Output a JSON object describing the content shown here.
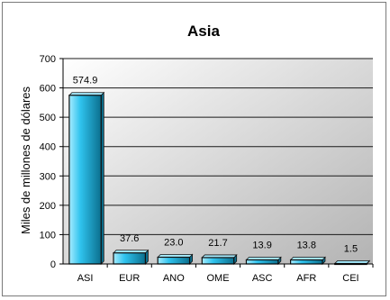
{
  "chart_data": {
    "type": "bar",
    "title": "Asia",
    "xlabel": "",
    "ylabel": "Miles de millones de dólares",
    "categories": [
      "ASI",
      "EUR",
      "ANO",
      "OME",
      "ASC",
      "AFR",
      "CEI"
    ],
    "values": [
      574.9,
      37.6,
      23.0,
      21.7,
      13.9,
      13.8,
      1.5
    ],
    "value_labels": [
      "574.9",
      "37.6",
      "23.0",
      "21.7",
      "13.9",
      "13.8",
      "1.5"
    ],
    "ylim": [
      0,
      700
    ],
    "yticks": [
      0,
      100,
      200,
      300,
      400,
      500,
      600,
      700
    ],
    "grid": true,
    "legend": "none",
    "colors": {
      "bar_light": "#a6ecff",
      "bar_mid": "#2fc3ee",
      "bar_dark": "#0b6f8e",
      "bar_outline": "#111111",
      "plot_bg_light": "#ffffff",
      "plot_bg_dark": "#b3b3b3",
      "gridline": "#1a1a1a",
      "text": "#000000"
    }
  }
}
